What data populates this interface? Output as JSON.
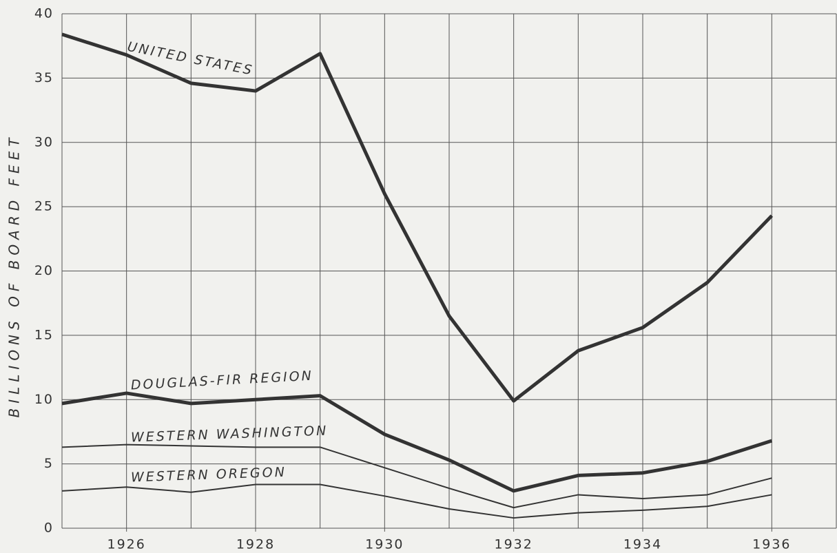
{
  "chart_data": {
    "type": "line",
    "y_label": "BILLIONS OF BOARD FEET",
    "x": [
      1925,
      1926,
      1927,
      1928,
      1929,
      1930,
      1931,
      1932,
      1933,
      1934,
      1935,
      1936
    ],
    "series": [
      {
        "name": "UNITED STATES",
        "color": "#333333",
        "width": 5,
        "values": [
          38.4,
          36.8,
          34.6,
          34.0,
          36.9,
          26.0,
          16.5,
          9.9,
          13.8,
          15.6,
          19.1,
          24.3
        ]
      },
      {
        "name": "DOUGLAS-FIR REGION",
        "color": "#333333",
        "width": 5,
        "values": [
          9.7,
          10.5,
          9.7,
          10.0,
          10.3,
          7.3,
          5.3,
          2.9,
          4.1,
          4.3,
          5.2,
          6.8
        ]
      },
      {
        "name": "WESTERN WASHINGTON",
        "color": "#333333",
        "width": 2,
        "values": [
          6.3,
          6.5,
          6.4,
          6.3,
          6.3,
          4.7,
          3.1,
          1.6,
          2.6,
          2.3,
          2.6,
          3.9
        ]
      },
      {
        "name": "WESTERN OREGON",
        "color": "#333333",
        "width": 2,
        "values": [
          2.9,
          3.2,
          2.8,
          3.4,
          3.4,
          2.5,
          1.5,
          0.8,
          1.2,
          1.4,
          1.7,
          2.6
        ]
      }
    ],
    "xlim": [
      1925,
      1937
    ],
    "xticks": [
      1926,
      1928,
      1930,
      1932,
      1934,
      1936
    ],
    "xgrid": [
      1925,
      1926,
      1927,
      1928,
      1929,
      1930,
      1931,
      1932,
      1933,
      1934,
      1935,
      1936,
      1937
    ],
    "ylim": [
      0,
      40
    ],
    "yticks": [
      0,
      5,
      10,
      15,
      20,
      25,
      30,
      35,
      40
    ],
    "grid": true
  }
}
